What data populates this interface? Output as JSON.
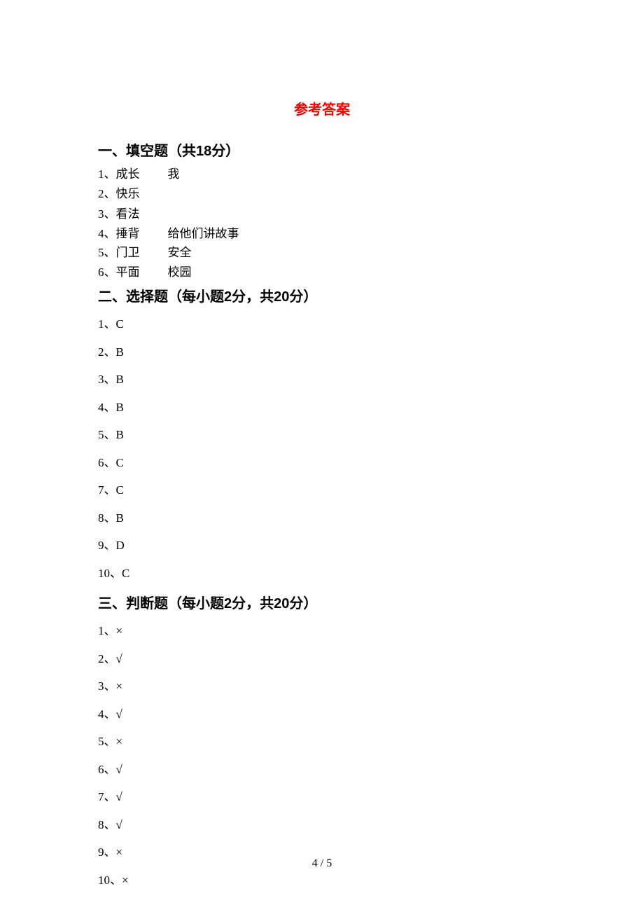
{
  "title": "参考答案",
  "section1": {
    "header": "一、填空题（共18分）",
    "items": [
      {
        "num": "1、",
        "parts": [
          "成长",
          "我"
        ]
      },
      {
        "num": "2、",
        "parts": [
          "快乐"
        ]
      },
      {
        "num": "3、",
        "parts": [
          "看法"
        ]
      },
      {
        "num": "4、",
        "parts": [
          "捶背",
          "给他们讲故事"
        ]
      },
      {
        "num": "5、",
        "parts": [
          "门卫",
          "安全"
        ]
      },
      {
        "num": "6、",
        "parts": [
          "平面",
          "校园"
        ]
      }
    ]
  },
  "section2": {
    "header": "二、选择题（每小题2分，共20分）",
    "items": [
      {
        "num": "1、",
        "ans": "C"
      },
      {
        "num": "2、",
        "ans": "B"
      },
      {
        "num": "3、",
        "ans": "B"
      },
      {
        "num": "4、",
        "ans": "B"
      },
      {
        "num": "5、",
        "ans": "B"
      },
      {
        "num": "6、",
        "ans": "C"
      },
      {
        "num": "7、",
        "ans": "C"
      },
      {
        "num": "8、",
        "ans": "B"
      },
      {
        "num": "9、",
        "ans": "D"
      },
      {
        "num": "10、",
        "ans": "C"
      }
    ]
  },
  "section3": {
    "header": "三、判断题（每小题2分，共20分）",
    "items": [
      {
        "num": "1、",
        "ans": "×"
      },
      {
        "num": "2、",
        "ans": "√"
      },
      {
        "num": "3、",
        "ans": "×"
      },
      {
        "num": "4、",
        "ans": "√"
      },
      {
        "num": "5、",
        "ans": "×"
      },
      {
        "num": "6、",
        "ans": "√"
      },
      {
        "num": "7、",
        "ans": "√"
      },
      {
        "num": "8、",
        "ans": "√"
      },
      {
        "num": "9、",
        "ans": "×"
      },
      {
        "num": "10、",
        "ans": "×"
      }
    ]
  },
  "pageNumber": "4 / 5"
}
